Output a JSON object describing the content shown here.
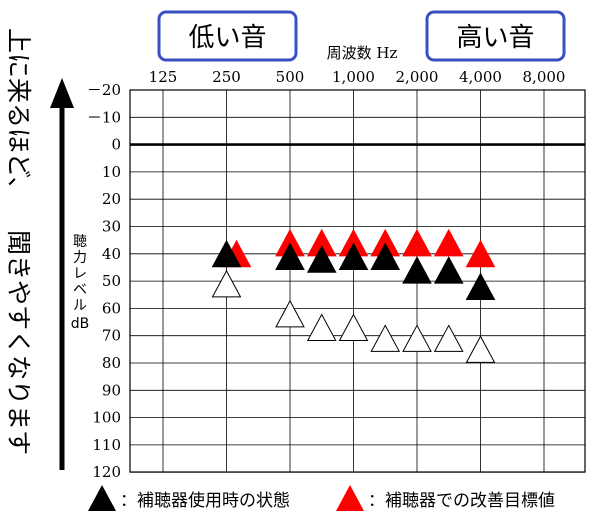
{
  "header": {
    "low_label": "低い音",
    "high_label": "高い音",
    "axis_title": "周波数 Hz",
    "border_color": "#3a4fc4"
  },
  "side_label": {
    "line1": "上に来るほど、",
    "line2": "聞きやすくなります"
  },
  "y_axis_label": {
    "line1": "聴",
    "line2": "力",
    "line3": "レ",
    "line4": "ベ",
    "line5": "ル",
    "line6": "dB"
  },
  "legend": {
    "current_label": "：補聴器使用時の状態",
    "target_label": "：補聴器での改善目標値",
    "current_color": "#000000",
    "target_color": "#ff0000"
  },
  "chart_data": {
    "type": "scatter",
    "x_scale": "log2",
    "x_ticks": [
      {
        "value": 125,
        "label": "125"
      },
      {
        "value": 250,
        "label": "250"
      },
      {
        "value": 500,
        "label": "500"
      },
      {
        "value": 1000,
        "label": "1,000"
      },
      {
        "value": 2000,
        "label": "2,000"
      },
      {
        "value": 4000,
        "label": "4,000"
      },
      {
        "value": 8000,
        "label": "8,000"
      }
    ],
    "xlim": [
      125,
      8000
    ],
    "y_reversed": true,
    "ylim": [
      -20,
      120
    ],
    "y_ticks": [
      {
        "value": -20,
        "label": "－20"
      },
      {
        "value": -10,
        "label": "－10"
      },
      {
        "value": 0,
        "label": "0"
      },
      {
        "value": 10,
        "label": "10"
      },
      {
        "value": 20,
        "label": "20"
      },
      {
        "value": 30,
        "label": "30"
      },
      {
        "value": 40,
        "label": "40"
      },
      {
        "value": 50,
        "label": "50"
      },
      {
        "value": 60,
        "label": "60"
      },
      {
        "value": 70,
        "label": "70"
      },
      {
        "value": 80,
        "label": "80"
      },
      {
        "value": 90,
        "label": "90"
      },
      {
        "value": 100,
        "label": "100"
      },
      {
        "value": 110,
        "label": "110"
      },
      {
        "value": 120,
        "label": "120"
      }
    ],
    "reference_line": 0,
    "grid": true,
    "series": [
      {
        "name": "補聴器使用時の状態",
        "marker": "filled-triangle",
        "color": "#000000",
        "points": [
          {
            "x": 250,
            "y": 40
          },
          {
            "x": 500,
            "y": 41
          },
          {
            "x": 707,
            "y": 42
          },
          {
            "x": 1000,
            "y": 41
          },
          {
            "x": 1414,
            "y": 41
          },
          {
            "x": 2000,
            "y": 46
          },
          {
            "x": 2828,
            "y": 46
          },
          {
            "x": 4000,
            "y": 52
          }
        ]
      },
      {
        "name": "補聴器での改善目標値",
        "marker": "filled-triangle",
        "color": "#ff0000",
        "points": [
          {
            "x": 250,
            "y": 40
          },
          {
            "x": 500,
            "y": 36
          },
          {
            "x": 707,
            "y": 36
          },
          {
            "x": 1000,
            "y": 36
          },
          {
            "x": 1414,
            "y": 36
          },
          {
            "x": 2000,
            "y": 36
          },
          {
            "x": 2828,
            "y": 36
          },
          {
            "x": 4000,
            "y": 40
          }
        ]
      },
      {
        "marker": "outline-triangle",
        "color": "#000000",
        "points": [
          {
            "x": 250,
            "y": 51
          },
          {
            "x": 500,
            "y": 62
          },
          {
            "x": 707,
            "y": 67
          },
          {
            "x": 1000,
            "y": 67
          },
          {
            "x": 1414,
            "y": 71
          },
          {
            "x": 2000,
            "y": 71
          },
          {
            "x": 2828,
            "y": 71
          },
          {
            "x": 4000,
            "y": 75
          }
        ]
      }
    ]
  }
}
